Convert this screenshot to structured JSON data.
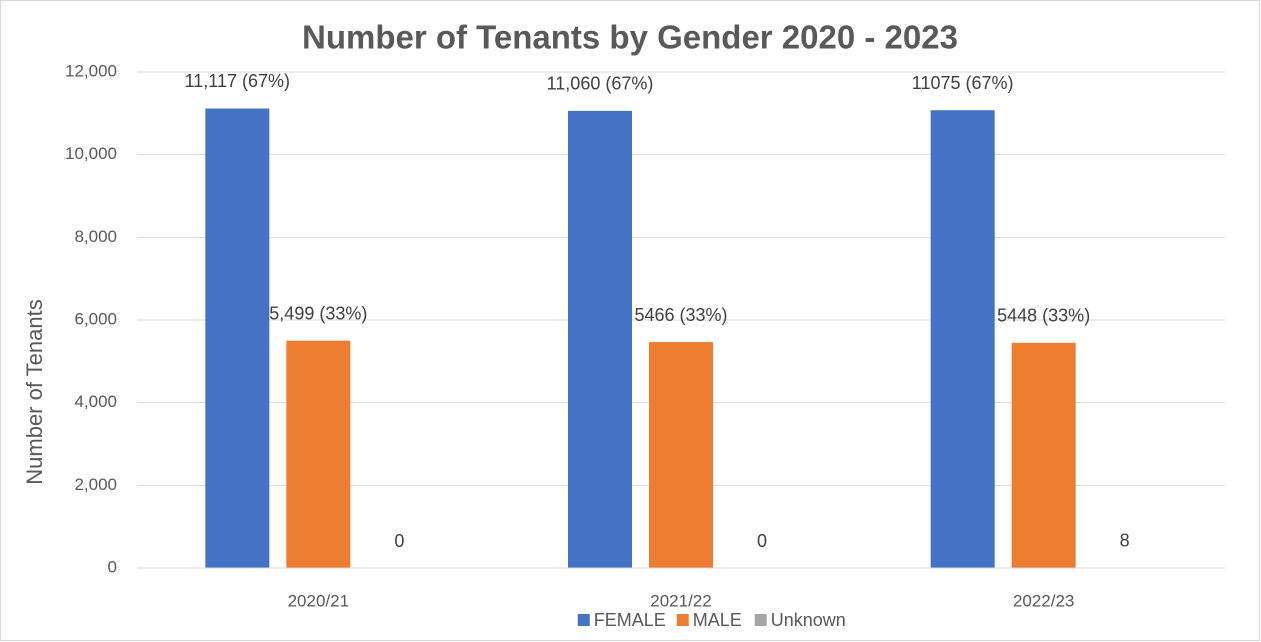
{
  "chart_data": {
    "type": "bar",
    "title": "Number of Tenants by Gender 2020 - 2023",
    "ylabel": "Number of Tenants",
    "categories": [
      "2020/21",
      "2021/22",
      "2022/23"
    ],
    "series": [
      {
        "name": "FEMALE",
        "color": "#4472c4",
        "values": [
          11117,
          11060,
          11075
        ],
        "value_labels": [
          "11,117 (67%)",
          "11,060 (67%)",
          "11075 (67%)"
        ]
      },
      {
        "name": "MALE",
        "color": "#ed7d31",
        "values": [
          5499,
          5466,
          5448
        ],
        "value_labels": [
          "5,499 (33%)",
          "5466 (33%)",
          "5448 (33%)"
        ]
      },
      {
        "name": "Unknown",
        "color": "#a5a5a5",
        "values": [
          0,
          0,
          8
        ],
        "value_labels": [
          "0",
          "0",
          "8"
        ]
      }
    ],
    "ylim": [
      0,
      12000
    ],
    "yticks": [
      0,
      {
        "value": 2000,
        "label": "2,000"
      },
      {
        "value": 4000,
        "label": "4,000"
      },
      {
        "value": 6000,
        "label": "6,000"
      },
      {
        "value": 8000,
        "label": "8,000"
      },
      {
        "value": 10000,
        "label": "10,000"
      },
      {
        "value": 12000,
        "label": "12,000"
      }
    ],
    "grid": true,
    "legend": "bottom"
  }
}
